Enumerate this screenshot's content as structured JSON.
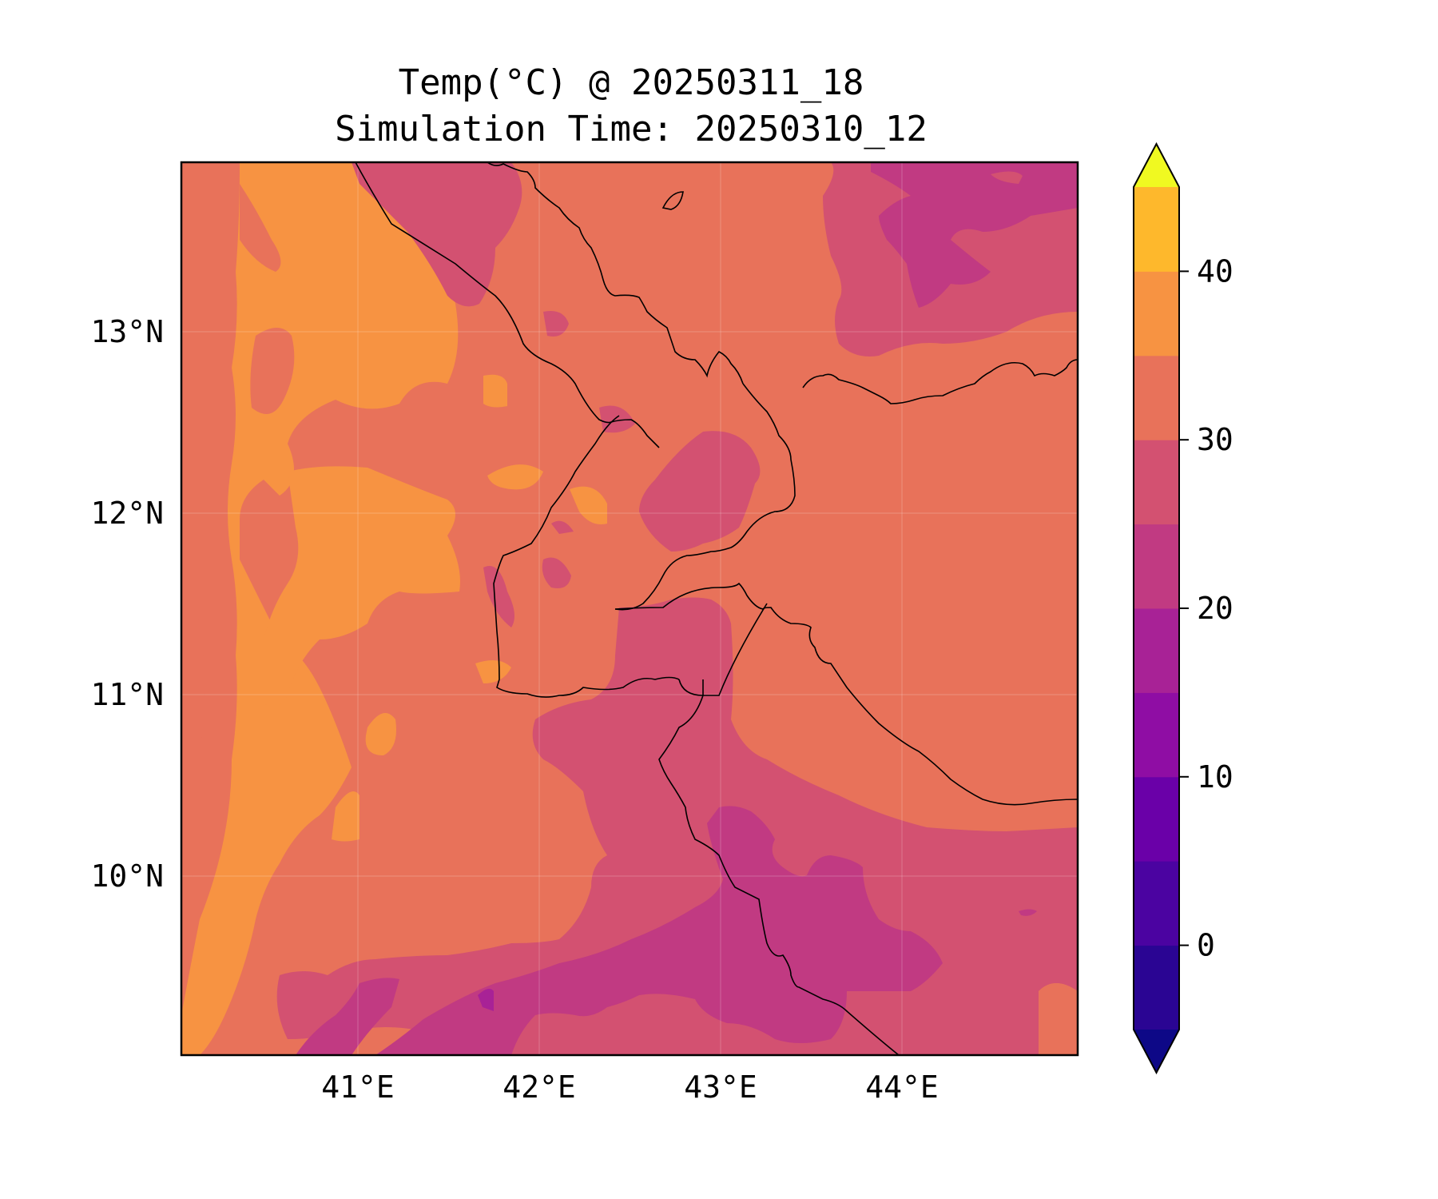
{
  "map": {
    "title_line1": "Temp(°C) @ 20250311_18",
    "title_line2": "Simulation Time: 20250310_12",
    "lon_labels": [
      "41°E",
      "42°E",
      "43°E",
      "44°E"
    ],
    "lat_labels": [
      "13°N",
      "12°N",
      "11°N",
      "10°N"
    ]
  },
  "colorbar": {
    "unit": "°C",
    "levels": [
      -5,
      0,
      5,
      10,
      15,
      20,
      25,
      30,
      35,
      40,
      45
    ],
    "tick_labels": [
      "40",
      "30",
      "20",
      "10",
      "0"
    ],
    "colors": [
      "#0d0887",
      "#2a0593",
      "#4b03a1",
      "#6a00a8",
      "#8f0da4",
      "#a82296",
      "#c13a82",
      "#d35171",
      "#e8725a",
      "#f79342",
      "#feb82c",
      "#f0e226",
      "#f0f921"
    ],
    "extend": "both"
  },
  "palette": {
    "c15_20": "#c13a82",
    "c20_25": "#d35171",
    "c25_30": "#e8725a",
    "c30_35": "#f79342",
    "c10_15": "#a82296",
    "c5_10": "#8f0da4"
  }
}
